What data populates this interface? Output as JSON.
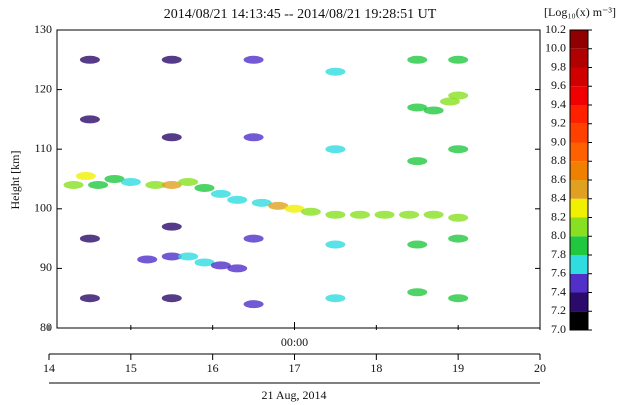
{
  "chart_data": {
    "type": "heatmap",
    "title": "2014/08/21 14:13:45 -- 2014/08/21 19:28:51 UT",
    "ylabel": "Height [km]",
    "xlabel": "21 Aug, 2014",
    "xlim": [
      14,
      20
    ],
    "xticks": [
      14,
      15,
      16,
      17,
      18,
      19,
      20
    ],
    "plot_xticks": [
      {
        "value": 17,
        "label": "00:00"
      }
    ],
    "ylim": [
      80,
      130
    ],
    "yticks": [
      80,
      90,
      100,
      110,
      120,
      130
    ],
    "x": [
      14.3,
      14.45,
      14.6,
      14.8,
      15.0,
      15.3,
      15.5,
      15.7,
      15.9,
      16.1,
      16.3,
      16.6,
      16.8,
      17.0,
      17.2,
      17.5,
      17.8,
      18.1,
      18.4,
      18.7,
      19.0,
      15.2,
      15.5,
      15.7,
      15.9,
      16.1,
      16.3,
      18.5,
      18.7,
      18.9,
      19.0,
      19.0,
      19.0,
      19.0,
      19.0,
      14.5,
      14.5,
      14.5,
      14.5,
      15.5,
      15.5,
      15.5,
      15.5,
      16.5,
      16.5,
      16.5,
      16.5,
      17.5,
      17.5,
      17.5,
      17.5,
      18.5,
      18.5,
      18.5,
      18.5
    ],
    "y": [
      104,
      105.5,
      104,
      105,
      104.5,
      104,
      104,
      104.5,
      103.5,
      102.5,
      101.5,
      101,
      100.5,
      100,
      99.5,
      99,
      99,
      99,
      99,
      99,
      98.5,
      91.5,
      92,
      92,
      91,
      90.5,
      90,
      117,
      116.5,
      118,
      119,
      85,
      95,
      110,
      125,
      85,
      95,
      115,
      125,
      85,
      97,
      112,
      125,
      84,
      95,
      112,
      125,
      85,
      94,
      110,
      123,
      86,
      94,
      108,
      125
    ],
    "values": [
      8.0,
      8.3,
      7.9,
      7.8,
      7.7,
      8.0,
      8.4,
      8.0,
      7.9,
      7.7,
      7.6,
      7.7,
      8.4,
      8.3,
      8.1,
      8.1,
      8.0,
      8.0,
      8.0,
      8.0,
      8.0,
      7.5,
      7.5,
      7.6,
      7.6,
      7.5,
      7.4,
      7.9,
      7.9,
      8.0,
      8.0,
      7.8,
      7.8,
      7.9,
      7.9,
      7.3,
      7.3,
      7.3,
      7.3,
      7.3,
      7.3,
      7.3,
      7.3,
      7.4,
      7.4,
      7.4,
      7.4,
      7.6,
      7.6,
      7.6,
      7.6,
      7.8,
      7.8,
      7.8,
      7.8
    ],
    "colorbar_label": "[Log₁₀(x) m⁻³]",
    "colorbar_ticks": [
      {
        "value": 7.0,
        "label": "7.0"
      },
      7.2,
      7.4,
      7.6,
      7.8,
      {
        "value": 8.0,
        "label": "8.0"
      },
      8.2,
      8.4,
      8.6,
      8.8,
      {
        "value": 9.0,
        "label": "9.0"
      },
      9.2,
      9.4,
      9.6,
      9.8,
      {
        "value": 10.0,
        "label": "10.0"
      },
      10.2
    ],
    "colorbar_colors": [
      "#000000",
      "#2a0a6a",
      "#5030c8",
      "#30dce0",
      "#20c840",
      "#88e020",
      "#f0f000",
      "#e0a020",
      "#f08000",
      "#ff6000",
      "#ff4000",
      "#ff2000",
      "#f00000",
      "#d00000",
      "#b00000",
      "#900000"
    ]
  }
}
